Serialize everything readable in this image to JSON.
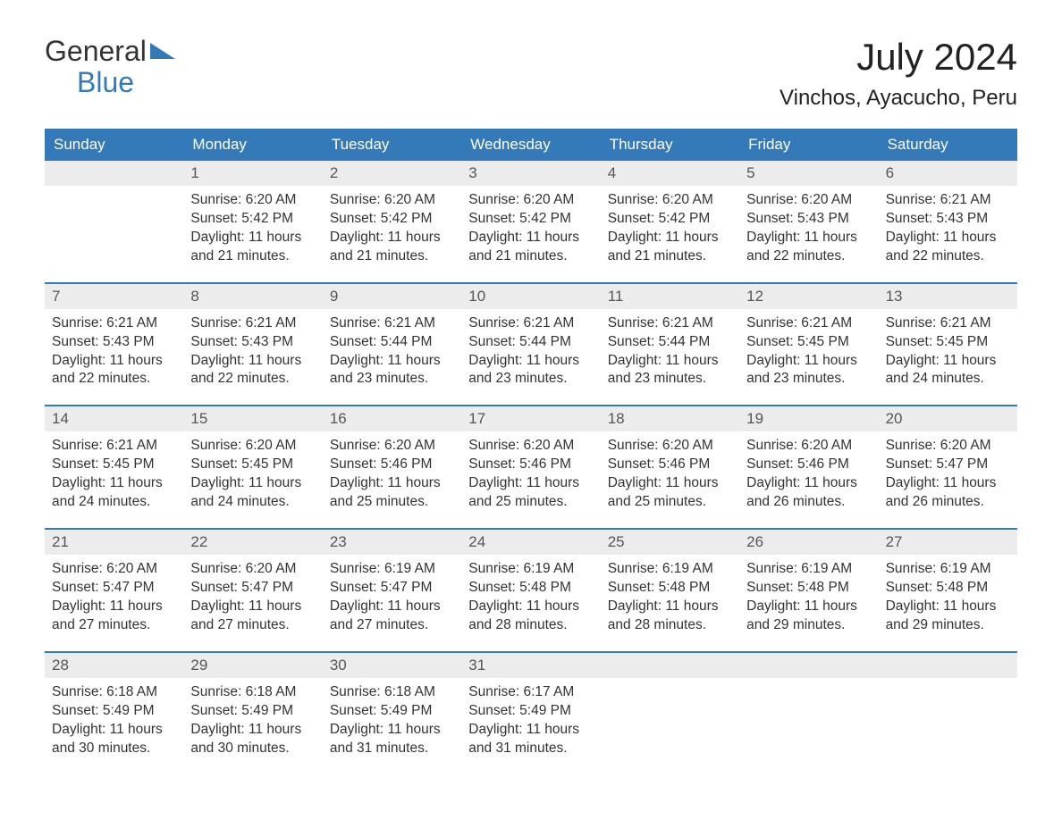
{
  "logo": {
    "line1": "General",
    "line2": "Blue"
  },
  "title": "July 2024",
  "location": "Vinchos, Ayacucho, Peru",
  "colors": {
    "header_bg": "#3479b8",
    "header_text": "#ffffff",
    "num_bg": "#ececec",
    "text": "#333333",
    "background": "#ffffff"
  },
  "day_headers": [
    "Sunday",
    "Monday",
    "Tuesday",
    "Wednesday",
    "Thursday",
    "Friday",
    "Saturday"
  ],
  "weeks": [
    [
      null,
      {
        "n": "1",
        "sr": "Sunrise: 6:20 AM",
        "ss": "Sunset: 5:42 PM",
        "d1": "Daylight: 11 hours",
        "d2": "and 21 minutes."
      },
      {
        "n": "2",
        "sr": "Sunrise: 6:20 AM",
        "ss": "Sunset: 5:42 PM",
        "d1": "Daylight: 11 hours",
        "d2": "and 21 minutes."
      },
      {
        "n": "3",
        "sr": "Sunrise: 6:20 AM",
        "ss": "Sunset: 5:42 PM",
        "d1": "Daylight: 11 hours",
        "d2": "and 21 minutes."
      },
      {
        "n": "4",
        "sr": "Sunrise: 6:20 AM",
        "ss": "Sunset: 5:42 PM",
        "d1": "Daylight: 11 hours",
        "d2": "and 21 minutes."
      },
      {
        "n": "5",
        "sr": "Sunrise: 6:20 AM",
        "ss": "Sunset: 5:43 PM",
        "d1": "Daylight: 11 hours",
        "d2": "and 22 minutes."
      },
      {
        "n": "6",
        "sr": "Sunrise: 6:21 AM",
        "ss": "Sunset: 5:43 PM",
        "d1": "Daylight: 11 hours",
        "d2": "and 22 minutes."
      }
    ],
    [
      {
        "n": "7",
        "sr": "Sunrise: 6:21 AM",
        "ss": "Sunset: 5:43 PM",
        "d1": "Daylight: 11 hours",
        "d2": "and 22 minutes."
      },
      {
        "n": "8",
        "sr": "Sunrise: 6:21 AM",
        "ss": "Sunset: 5:43 PM",
        "d1": "Daylight: 11 hours",
        "d2": "and 22 minutes."
      },
      {
        "n": "9",
        "sr": "Sunrise: 6:21 AM",
        "ss": "Sunset: 5:44 PM",
        "d1": "Daylight: 11 hours",
        "d2": "and 23 minutes."
      },
      {
        "n": "10",
        "sr": "Sunrise: 6:21 AM",
        "ss": "Sunset: 5:44 PM",
        "d1": "Daylight: 11 hours",
        "d2": "and 23 minutes."
      },
      {
        "n": "11",
        "sr": "Sunrise: 6:21 AM",
        "ss": "Sunset: 5:44 PM",
        "d1": "Daylight: 11 hours",
        "d2": "and 23 minutes."
      },
      {
        "n": "12",
        "sr": "Sunrise: 6:21 AM",
        "ss": "Sunset: 5:45 PM",
        "d1": "Daylight: 11 hours",
        "d2": "and 23 minutes."
      },
      {
        "n": "13",
        "sr": "Sunrise: 6:21 AM",
        "ss": "Sunset: 5:45 PM",
        "d1": "Daylight: 11 hours",
        "d2": "and 24 minutes."
      }
    ],
    [
      {
        "n": "14",
        "sr": "Sunrise: 6:21 AM",
        "ss": "Sunset: 5:45 PM",
        "d1": "Daylight: 11 hours",
        "d2": "and 24 minutes."
      },
      {
        "n": "15",
        "sr": "Sunrise: 6:20 AM",
        "ss": "Sunset: 5:45 PM",
        "d1": "Daylight: 11 hours",
        "d2": "and 24 minutes."
      },
      {
        "n": "16",
        "sr": "Sunrise: 6:20 AM",
        "ss": "Sunset: 5:46 PM",
        "d1": "Daylight: 11 hours",
        "d2": "and 25 minutes."
      },
      {
        "n": "17",
        "sr": "Sunrise: 6:20 AM",
        "ss": "Sunset: 5:46 PM",
        "d1": "Daylight: 11 hours",
        "d2": "and 25 minutes."
      },
      {
        "n": "18",
        "sr": "Sunrise: 6:20 AM",
        "ss": "Sunset: 5:46 PM",
        "d1": "Daylight: 11 hours",
        "d2": "and 25 minutes."
      },
      {
        "n": "19",
        "sr": "Sunrise: 6:20 AM",
        "ss": "Sunset: 5:46 PM",
        "d1": "Daylight: 11 hours",
        "d2": "and 26 minutes."
      },
      {
        "n": "20",
        "sr": "Sunrise: 6:20 AM",
        "ss": "Sunset: 5:47 PM",
        "d1": "Daylight: 11 hours",
        "d2": "and 26 minutes."
      }
    ],
    [
      {
        "n": "21",
        "sr": "Sunrise: 6:20 AM",
        "ss": "Sunset: 5:47 PM",
        "d1": "Daylight: 11 hours",
        "d2": "and 27 minutes."
      },
      {
        "n": "22",
        "sr": "Sunrise: 6:20 AM",
        "ss": "Sunset: 5:47 PM",
        "d1": "Daylight: 11 hours",
        "d2": "and 27 minutes."
      },
      {
        "n": "23",
        "sr": "Sunrise: 6:19 AM",
        "ss": "Sunset: 5:47 PM",
        "d1": "Daylight: 11 hours",
        "d2": "and 27 minutes."
      },
      {
        "n": "24",
        "sr": "Sunrise: 6:19 AM",
        "ss": "Sunset: 5:48 PM",
        "d1": "Daylight: 11 hours",
        "d2": "and 28 minutes."
      },
      {
        "n": "25",
        "sr": "Sunrise: 6:19 AM",
        "ss": "Sunset: 5:48 PM",
        "d1": "Daylight: 11 hours",
        "d2": "and 28 minutes."
      },
      {
        "n": "26",
        "sr": "Sunrise: 6:19 AM",
        "ss": "Sunset: 5:48 PM",
        "d1": "Daylight: 11 hours",
        "d2": "and 29 minutes."
      },
      {
        "n": "27",
        "sr": "Sunrise: 6:19 AM",
        "ss": "Sunset: 5:48 PM",
        "d1": "Daylight: 11 hours",
        "d2": "and 29 minutes."
      }
    ],
    [
      {
        "n": "28",
        "sr": "Sunrise: 6:18 AM",
        "ss": "Sunset: 5:49 PM",
        "d1": "Daylight: 11 hours",
        "d2": "and 30 minutes."
      },
      {
        "n": "29",
        "sr": "Sunrise: 6:18 AM",
        "ss": "Sunset: 5:49 PM",
        "d1": "Daylight: 11 hours",
        "d2": "and 30 minutes."
      },
      {
        "n": "30",
        "sr": "Sunrise: 6:18 AM",
        "ss": "Sunset: 5:49 PM",
        "d1": "Daylight: 11 hours",
        "d2": "and 31 minutes."
      },
      {
        "n": "31",
        "sr": "Sunrise: 6:17 AM",
        "ss": "Sunset: 5:49 PM",
        "d1": "Daylight: 11 hours",
        "d2": "and 31 minutes."
      },
      null,
      null,
      null
    ]
  ]
}
